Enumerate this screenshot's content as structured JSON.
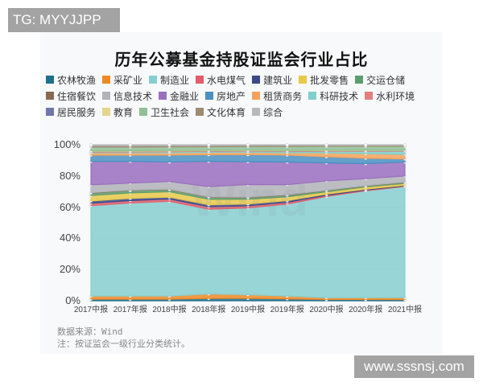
{
  "watermarks": {
    "top_left": "TG: MYYJJPP",
    "bottom_right": "www.sssnsj.com",
    "chart_watermark": "Wind"
  },
  "chart_data": {
    "type": "area",
    "stacked": true,
    "normalized": true,
    "title": "历年公募基金持股证监会行业占比",
    "xlabel": "",
    "ylabel": "",
    "ylim": [
      0,
      100
    ],
    "y_ticks": [
      "0%",
      "20%",
      "40%",
      "60%",
      "80%",
      "100%"
    ],
    "grid": true,
    "legend_position": "top",
    "categories": [
      "2017中报",
      "2017年报",
      "2018中报",
      "2018年报",
      "2019中报",
      "2019年报",
      "2020中报",
      "2020年报",
      "2021中报"
    ],
    "series": [
      {
        "name": "农林牧渔",
        "color": "#1f6f8b",
        "values": [
          1.0,
          1.0,
          1.0,
          1.5,
          1.5,
          1.2,
          0.8,
          0.8,
          0.8
        ]
      },
      {
        "name": "采矿业",
        "color": "#f08a24",
        "values": [
          2.0,
          2.0,
          2.0,
          2.8,
          2.3,
          1.8,
          1.2,
          1.2,
          1.2
        ]
      },
      {
        "name": "制造业",
        "color": "#86cfcf",
        "values": [
          58.0,
          60.0,
          61.0,
          53.7,
          55.2,
          59.0,
          65.0,
          69.0,
          72.0
        ]
      },
      {
        "name": "水电煤气",
        "color": "#e35d6a",
        "values": [
          1.5,
          1.5,
          1.5,
          1.5,
          1.3,
          1.2,
          0.8,
          0.5,
          0.4
        ]
      },
      {
        "name": "建筑业",
        "color": "#3b4a8c",
        "values": [
          1.5,
          1.5,
          1.2,
          1.3,
          1.2,
          1.0,
          0.7,
          0.5,
          0.4
        ]
      },
      {
        "name": "批发零售",
        "color": "#e8c94a",
        "values": [
          3.5,
          3.5,
          3.5,
          3.5,
          3.0,
          2.5,
          1.5,
          1.5,
          1.2
        ]
      },
      {
        "name": "交运仓储",
        "color": "#5c9e6e",
        "values": [
          1.5,
          1.5,
          1.3,
          1.2,
          1.0,
          1.0,
          0.8,
          0.6,
          0.6
        ]
      },
      {
        "name": "住宿餐饮",
        "color": "#8a6a50",
        "values": [
          0.3,
          0.3,
          0.3,
          0.3,
          0.3,
          0.3,
          0.2,
          0.2,
          0.2
        ]
      },
      {
        "name": "信息技术",
        "color": "#b0b3b8",
        "values": [
          5.0,
          4.5,
          5.0,
          6.5,
          8.0,
          6.5,
          6.0,
          4.5,
          4.0
        ]
      },
      {
        "name": "金融业",
        "color": "#9b6fc0",
        "values": [
          15.0,
          14.0,
          12.5,
          16.0,
          14.5,
          14.5,
          11.5,
          9.7,
          9.0
        ]
      },
      {
        "name": "房地产",
        "color": "#4a90c2",
        "values": [
          4.0,
          4.0,
          4.5,
          4.2,
          4.5,
          4.5,
          4.0,
          3.5,
          2.0
        ]
      },
      {
        "name": "租赁商务",
        "color": "#f3a35c",
        "values": [
          1.5,
          1.5,
          1.5,
          1.5,
          1.5,
          1.5,
          2.5,
          3.0,
          3.0
        ]
      },
      {
        "name": "科研技术",
        "color": "#7fd0cc",
        "values": [
          0.5,
          0.5,
          0.6,
          0.6,
          0.7,
          0.8,
          1.0,
          1.5,
          2.0
        ]
      },
      {
        "name": "水利环境",
        "color": "#e27f7f",
        "values": [
          0.4,
          0.4,
          0.4,
          0.3,
          0.3,
          0.3,
          0.3,
          0.3,
          0.3
        ]
      },
      {
        "name": "居民服务",
        "color": "#6f76a8",
        "values": [
          0.1,
          0.1,
          0.1,
          0.1,
          0.1,
          0.1,
          0.1,
          0.1,
          0.1
        ]
      },
      {
        "name": "教育",
        "color": "#e5d58a",
        "values": [
          0.3,
          0.3,
          0.3,
          0.3,
          0.3,
          0.3,
          0.3,
          0.3,
          0.3
        ]
      },
      {
        "name": "卫生社会",
        "color": "#8fbf94",
        "values": [
          2.4,
          2.4,
          2.3,
          2.2,
          2.3,
          2.5,
          2.5,
          2.5,
          2.5
        ]
      },
      {
        "name": "文化体育",
        "color": "#a08a70",
        "values": [
          1.0,
          1.0,
          0.9,
          0.8,
          0.7,
          0.7,
          0.6,
          0.6,
          0.6
        ]
      },
      {
        "name": "综合",
        "color": "#b7babd",
        "values": [
          0.5,
          0.5,
          0.5,
          0.5,
          0.4,
          0.4,
          0.4,
          0.4,
          0.4
        ]
      }
    ]
  },
  "footer": {
    "source": "数据来源：Wind",
    "note": "注：按证监会一级行业分类统计。"
  }
}
